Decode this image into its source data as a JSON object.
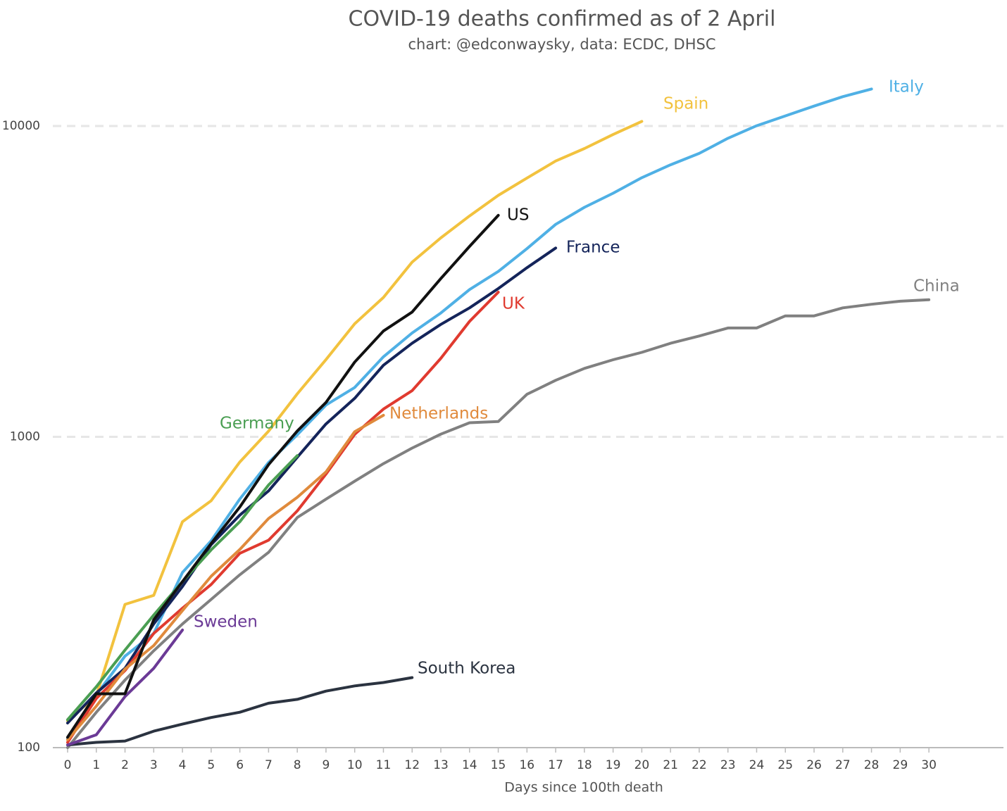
{
  "chart_data": {
    "type": "line",
    "title": "COVID-19 deaths confirmed as of 2 April",
    "subtitle": "chart: @edconwaysky, data: ECDC, DHSC",
    "x_label": "Days since 100th death",
    "log_y": true,
    "grid": true,
    "xlim": [
      0,
      32.5
    ],
    "ylim": [
      100,
      15000
    ],
    "xticks": [
      0,
      1,
      2,
      3,
      4,
      5,
      6,
      7,
      8,
      9,
      10,
      11,
      12,
      13,
      14,
      15,
      16,
      17,
      18,
      19,
      20,
      21,
      22,
      23,
      24,
      25,
      26,
      27,
      28,
      29,
      30
    ],
    "yticks": [
      100,
      1000,
      10000
    ],
    "x": [
      0,
      1,
      2,
      3,
      4,
      5,
      6,
      7,
      8,
      9,
      10,
      11,
      12,
      13,
      14,
      15,
      16,
      17,
      18,
      19,
      20,
      21,
      22,
      23,
      24,
      25,
      26,
      27,
      28,
      29,
      30
    ],
    "series": [
      {
        "name": "China",
        "color": "#808080",
        "values": [
          100,
          130,
          165,
          205,
          250,
          300,
          360,
          425,
          550,
          630,
          720,
          820,
          920,
          1020,
          1110,
          1120,
          1370,
          1520,
          1660,
          1770,
          1870,
          2000,
          2110,
          2240,
          2240,
          2450,
          2450,
          2600,
          2670,
          2730,
          2760
        ]
      },
      {
        "name": "South Korea",
        "color": "#2b3340",
        "values": [
          102,
          104,
          105,
          113,
          119,
          125,
          130,
          139,
          143,
          152,
          158,
          162,
          168,
          null,
          null,
          null,
          null,
          null,
          null,
          null,
          null,
          null,
          null,
          null,
          null,
          null,
          null,
          null,
          null,
          null,
          null
        ]
      },
      {
        "name": "Italy",
        "color": "#4fb0e5",
        "values": [
          107,
          148,
          197,
          233,
          366,
          463,
          631,
          827,
          1016,
          1266,
          1441,
          1809,
          2158,
          2503,
          2978,
          3405,
          4032,
          4825,
          5476,
          6077,
          6820,
          7503,
          8165,
          9134,
          10023,
          10779,
          11591,
          12428,
          13155,
          null,
          null
        ]
      },
      {
        "name": "Spain",
        "color": "#f2c23e",
        "values": [
          122,
          147,
          289,
          309,
          533,
          623,
          830,
          1043,
          1375,
          1772,
          2311,
          2808,
          3647,
          4365,
          5138,
          5982,
          6803,
          7716,
          8464,
          9387,
          10348,
          null,
          null,
          null,
          null,
          null,
          null,
          null,
          null,
          null,
          null
        ]
      },
      {
        "name": "France",
        "color": "#14245a",
        "values": [
          120,
          150,
          180,
          250,
          330,
          450,
          560,
          670,
          860,
          1100,
          1330,
          1700,
          2000,
          2300,
          2600,
          3000,
          3500,
          4050,
          null,
          null,
          null,
          null,
          null,
          null,
          null,
          null,
          null,
          null,
          null,
          null,
          null
        ]
      },
      {
        "name": "UK",
        "color": "#e03a2f",
        "values": [
          104,
          144,
          177,
          233,
          281,
          335,
          422,
          465,
          578,
          759,
          1019,
          1228,
          1408,
          1789,
          2352,
          2921,
          null,
          null,
          null,
          null,
          null,
          null,
          null,
          null,
          null,
          null,
          null,
          null,
          null,
          null,
          null
        ]
      },
      {
        "name": "Netherlands",
        "color": "#e08a3c",
        "values": [
          106,
          136,
          179,
          213,
          276,
          356,
          434,
          546,
          639,
          771,
          1039,
          1173,
          null,
          null,
          null,
          null,
          null,
          null,
          null,
          null,
          null,
          null,
          null,
          null,
          null,
          null,
          null,
          null,
          null,
          null,
          null
        ]
      },
      {
        "name": "Sweden",
        "color": "#6b3a96",
        "values": [
          102,
          110,
          146,
          180,
          239,
          null,
          null,
          null,
          null,
          null,
          null,
          null,
          null,
          null,
          null,
          null,
          null,
          null,
          null,
          null,
          null,
          null,
          null,
          null,
          null,
          null,
          null,
          null,
          null,
          null,
          null
        ]
      },
      {
        "name": "Germany",
        "color": "#4a9e52",
        "values": [
          123,
          157,
          206,
          267,
          342,
          433,
          533,
          700,
          870,
          null,
          null,
          null,
          null,
          null,
          null,
          null,
          null,
          null,
          null,
          null,
          null,
          null,
          null,
          null,
          null,
          null,
          null,
          null,
          null,
          null,
          null
        ]
      },
      {
        "name": "US",
        "color": "#111111",
        "values": [
          108,
          149,
          149,
          258,
          342,
          454,
          595,
          814,
          1044,
          1290,
          1740,
          2190,
          2520,
          3230,
          4100,
          5160,
          null,
          null,
          null,
          null,
          null,
          null,
          null,
          null,
          null,
          null,
          null,
          null,
          null,
          null,
          null
        ]
      }
    ]
  }
}
